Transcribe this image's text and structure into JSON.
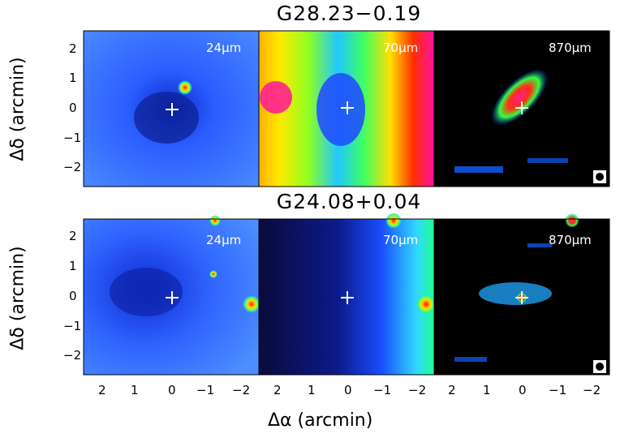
{
  "figure": {
    "rows": [
      {
        "title": "G28.23−0.19",
        "panels": [
          {
            "label": "24μm",
            "colormap": "blue"
          },
          {
            "label": "70μm",
            "colormap": "rainbow"
          },
          {
            "label": "870μm",
            "colormap": "dark",
            "beam": true
          }
        ]
      },
      {
        "title": "G24.08+0.04",
        "panels": [
          {
            "label": "24μm",
            "colormap": "blue"
          },
          {
            "label": "70μm",
            "colormap": "darkblue"
          },
          {
            "label": "870μm",
            "colormap": "dark",
            "beam": true
          }
        ]
      }
    ],
    "ylabel": "Δδ (arcmin)",
    "xlabel": "Δα (arcmin)",
    "x_ticks": [
      "2",
      "1",
      "0",
      "−1",
      "−2"
    ],
    "y_ticks": [
      "2",
      "1",
      "0",
      "−1",
      "−2"
    ],
    "marker": "+ at (0,0)"
  },
  "colors": {
    "background": "#ffffff",
    "blue_map_base": "#2e62ff",
    "rainbow_hot": "#ff1090",
    "dark_map_base": "#000000"
  }
}
